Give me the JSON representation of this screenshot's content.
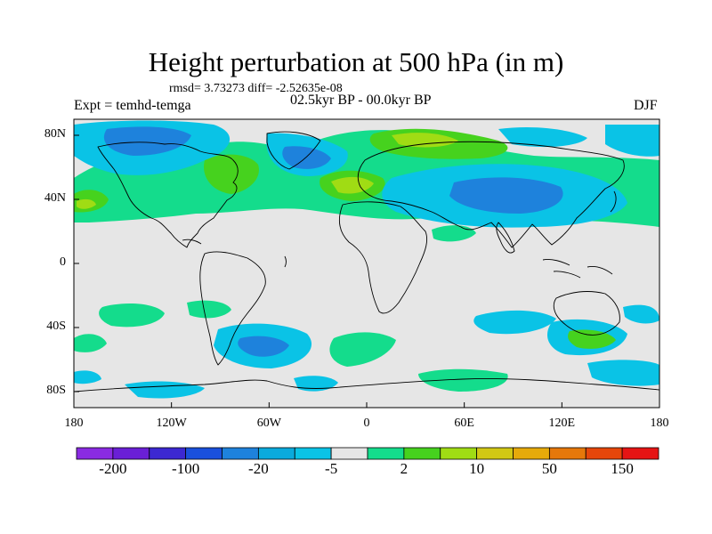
{
  "header": {
    "title": "Height perturbation at 500 hPa (in m)",
    "stats": "rmsd= 3.73273 diff= -2.52635e-08",
    "experiment": "Expt = temhd-temga",
    "period": "02.5kyr BP - 00.0kyr BP",
    "season": "DJF"
  },
  "map": {
    "projection": "cylindrical-equidistant",
    "lon_range": [
      -180,
      180
    ],
    "lat_range": [
      -90,
      90
    ],
    "background_color": "#e6e6e6",
    "y_ticks": [
      {
        "label": "80N",
        "lat": 80
      },
      {
        "label": "40N",
        "lat": 40
      },
      {
        "label": "0",
        "lat": 0
      },
      {
        "label": "40S",
        "lat": -40
      },
      {
        "label": "80S",
        "lat": -80
      }
    ],
    "x_ticks": [
      {
        "label": "180",
        "lon": -180
      },
      {
        "label": "120W",
        "lon": -120
      },
      {
        "label": "60W",
        "lon": -60
      },
      {
        "label": "0",
        "lon": 0
      },
      {
        "label": "60E",
        "lon": 60
      },
      {
        "label": "120E",
        "lon": 120
      },
      {
        "label": "180",
        "lon": 180
      }
    ]
  },
  "colorbar": {
    "colors": [
      "#8a2be2",
      "#6a1fd6",
      "#3c28d2",
      "#1a50dc",
      "#1e82dc",
      "#0aaadc",
      "#0ac3e6",
      "#e6e6e6",
      "#14dc8c",
      "#46d21e",
      "#a0dc14",
      "#d2c814",
      "#e6aa0a",
      "#e6780a",
      "#e6460a",
      "#e61414"
    ],
    "labels": [
      {
        "text": "-200",
        "after_index": 0
      },
      {
        "text": "-100",
        "after_index": 2
      },
      {
        "text": "-20",
        "after_index": 4
      },
      {
        "text": "-5",
        "after_index": 6
      },
      {
        "text": "2",
        "after_index": 8
      },
      {
        "text": "10",
        "after_index": 10
      },
      {
        "text": "50",
        "after_index": 12
      },
      {
        "text": "150",
        "after_index": 14
      }
    ]
  }
}
